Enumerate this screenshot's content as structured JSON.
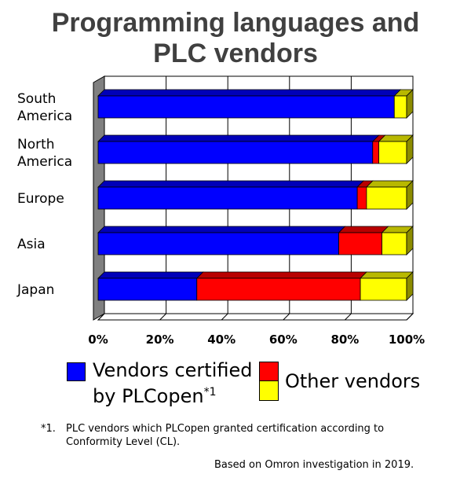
{
  "title_lines": [
    "Programming languages and",
    "PLC vendors"
  ],
  "chart_data": {
    "type": "bar",
    "orientation": "horizontal",
    "stacked": true,
    "percent": true,
    "title": "Programming languages and PLC vendors",
    "categories": [
      [
        "South",
        "America"
      ],
      [
        "North",
        "America"
      ],
      [
        "Europe"
      ],
      [
        "Asia"
      ],
      [
        "Japan"
      ]
    ],
    "series": [
      {
        "name": "Vendors certified by PLCopen*1",
        "color": "#0000ff",
        "values": [
          96,
          89,
          84,
          78,
          32
        ]
      },
      {
        "name": "Other vendors",
        "color": "#ff0000",
        "values": [
          0,
          2,
          3,
          14,
          53
        ]
      },
      {
        "name": "Other vendors",
        "color": "#ffff00",
        "values": [
          4,
          9,
          13,
          8,
          15
        ]
      }
    ],
    "xlim": [
      0,
      100
    ],
    "xticks": [
      "0%",
      "20%",
      "40%",
      "60%",
      "80%",
      "100%"
    ],
    "grid": true,
    "legend_position": "bottom"
  },
  "legend": {
    "certified_line1": "Vendors certified",
    "certified_line2": "by PLCopen",
    "certified_sup": "*1",
    "other": "Other vendors"
  },
  "footnote": {
    "marker": "*1.",
    "line1": "PLC vendors which PLCopen granted certification according to",
    "line2": "Conformity Level (CL).",
    "source": "Based on Omron investigation in 2019."
  }
}
